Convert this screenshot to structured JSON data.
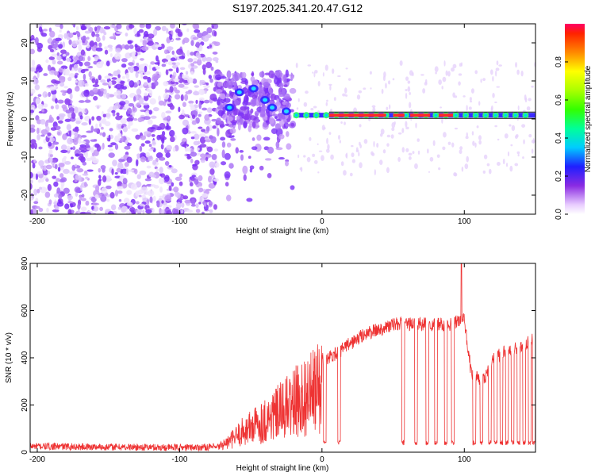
{
  "title": "S197.2025.341.20.47.G12",
  "chart_data": [
    {
      "type": "heatmap",
      "xlabel": "Height of straight line (km)",
      "ylabel": "Frequency (Hz)",
      "xlim": [
        -205,
        150
      ],
      "ylim": [
        -25,
        25
      ],
      "xticks": [
        -200,
        -100,
        0,
        100
      ],
      "yticks": [
        -20,
        -10,
        0,
        10,
        20
      ],
      "colorbar": {
        "label": "Normalized spectral amplitude",
        "ticks": [
          0.0,
          0.2,
          0.4,
          0.6,
          0.8
        ],
        "range": [
          0,
          1
        ]
      },
      "features": [
        {
          "region": "noise",
          "x_range": [
            -205,
            -73
          ],
          "note": "scattered purple blobs across all frequencies"
        },
        {
          "region": "transition",
          "x_range": [
            -73,
            -20
          ],
          "note": "blobs concentrated near 0 to 10 Hz"
        },
        {
          "region": "carrier",
          "x_range": [
            0,
            150
          ],
          "frequency": 1,
          "note": "strong line near 1 Hz"
        }
      ]
    },
    {
      "type": "line",
      "xlabel": "Height of straight line (km)",
      "ylabel": "SNR (10 * v/v)",
      "xlim": [
        -205,
        150
      ],
      "ylim": [
        0,
        800
      ],
      "xticks": [
        -200,
        -100,
        0,
        100
      ],
      "yticks": [
        0,
        200,
        400,
        600,
        800
      ],
      "color": "#ee3333",
      "envelope": {
        "x": [
          -205,
          -150,
          -100,
          -75,
          -65,
          -55,
          -45,
          -35,
          -25,
          -15,
          -5,
          0,
          10,
          20,
          30,
          40,
          50,
          60,
          70,
          80,
          90,
          97,
          100,
          105,
          110,
          115,
          120,
          125,
          130,
          140,
          150
        ],
        "y": [
          25,
          22,
          20,
          22,
          60,
          120,
          160,
          200,
          250,
          300,
          340,
          390,
          420,
          460,
          500,
          520,
          540,
          545,
          540,
          545,
          540,
          560,
          560,
          330,
          310,
          320,
          400,
          410,
          430,
          440,
          490
        ]
      },
      "dropouts": [
        2,
        12,
        57,
        66,
        74,
        80,
        87,
        92,
        107,
        112,
        118,
        122,
        126,
        130,
        134,
        138,
        142,
        146,
        149
      ],
      "peak": {
        "x": 98,
        "y": 800
      }
    }
  ]
}
